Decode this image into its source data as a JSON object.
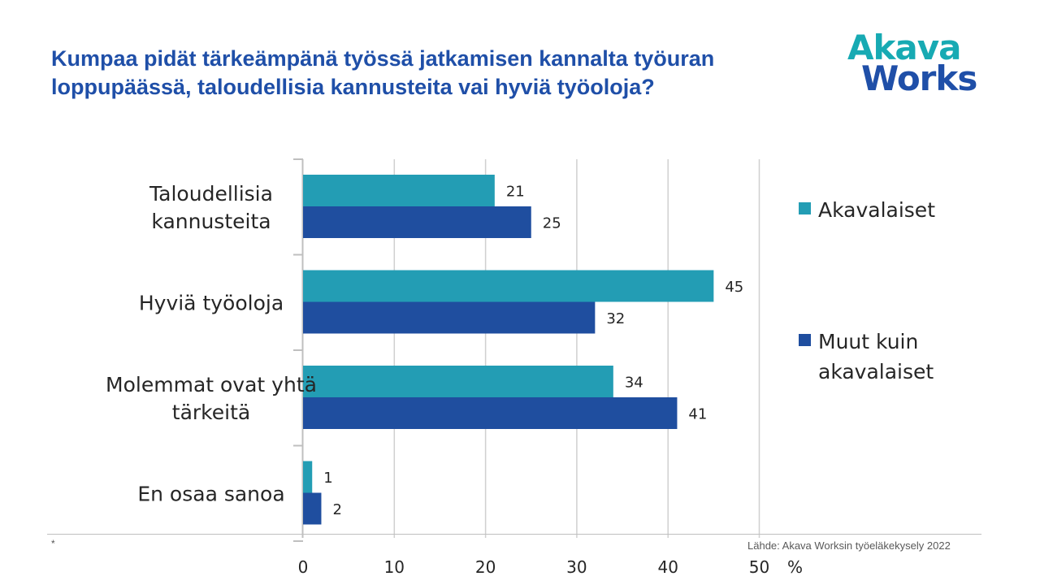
{
  "page": {
    "title": "Kumpaa pidät tärkeämpänä työssä jatkamisen kannalta työuran loppupäässä, taloudellisia kannusteita vai hyviä työoloja?",
    "logo_line1": "Akava",
    "logo_line2": "Works",
    "footnote": "*",
    "source": "Lähde: Akava  Worksin työeläkekysely 2022"
  },
  "colors": {
    "title": "#1f4fa8",
    "series_akavalaiset": "#239db4",
    "series_muut": "#1f4e9f",
    "gridline": "#d0d0d0"
  },
  "chart_data": {
    "type": "bar",
    "orientation": "horizontal",
    "categories": [
      [
        "Taloudellisia",
        "kannusteita"
      ],
      [
        "Hyviä työoloja"
      ],
      [
        "Molemmat ovat yhtä",
        "tärkeitä"
      ],
      [
        "En osaa sanoa"
      ]
    ],
    "series": [
      {
        "name": "Akavalaiset",
        "values": [
          21,
          45,
          34,
          1
        ]
      },
      {
        "name": "Muut kuin akavalaiset",
        "legend_lines": [
          "Muut kuin",
          "akavalaiset"
        ],
        "values": [
          25,
          32,
          41,
          2
        ]
      }
    ],
    "xlim": [
      0,
      50
    ],
    "xticks": [
      0,
      10,
      20,
      30,
      40,
      50
    ],
    "xunit": "%",
    "grid": true,
    "legend_position": "right"
  }
}
